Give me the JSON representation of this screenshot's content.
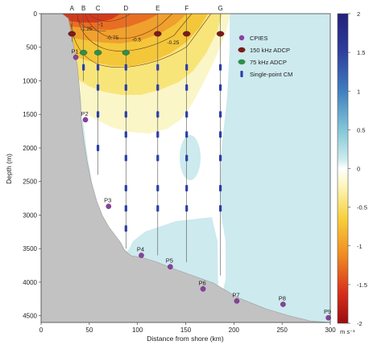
{
  "chart_data": {
    "type": "heatmap",
    "xlabel": "Distance from shore (km)",
    "ylabel": "Depth (m)",
    "xlim": [
      0,
      300
    ],
    "ylim": [
      4600,
      0
    ],
    "x_ticks": [
      0,
      50,
      100,
      150,
      200,
      250,
      300
    ],
    "y_ticks": [
      0,
      500,
      1000,
      1500,
      2000,
      2500,
      3000,
      3500,
      4000,
      4500
    ],
    "colorbar": {
      "label": "m s⁻¹",
      "range": [
        -2,
        2
      ],
      "ticks": [
        2,
        1.5,
        1,
        0.5,
        0,
        -0.5,
        -1,
        -1.5,
        -2
      ]
    },
    "contour_labels": [
      {
        "text": "-1.25",
        "x": 47,
        "y": 230
      },
      {
        "text": "-1",
        "x": 62,
        "y": 160
      },
      {
        "text": "-0.75",
        "x": 74,
        "y": 360
      },
      {
        "text": "-0.5",
        "x": 99,
        "y": 390
      },
      {
        "text": "-0.25",
        "x": 137,
        "y": 430
      }
    ],
    "moorings": [
      {
        "name": "A",
        "x": 32,
        "bottom": 420
      },
      {
        "name": "B",
        "x": 44,
        "bottom": 1000
      },
      {
        "name": "C",
        "x": 59,
        "bottom": 2400
      },
      {
        "name": "D",
        "x": 88,
        "bottom": 3500
      },
      {
        "name": "E",
        "x": 121,
        "bottom": 3600
      },
      {
        "name": "F",
        "x": 151,
        "bottom": 3700
      },
      {
        "name": "G",
        "x": 186,
        "bottom": 3900
      }
    ],
    "adcp_150": [
      [
        32,
        300
      ],
      [
        121,
        300
      ],
      [
        151,
        300
      ],
      [
        186,
        300
      ]
    ],
    "adcp_75": [
      [
        44,
        580
      ],
      [
        59,
        580
      ],
      [
        88,
        580
      ]
    ],
    "current_meters": [
      [
        44,
        800
      ],
      [
        59,
        800
      ],
      [
        59,
        1100
      ],
      [
        59,
        1500
      ],
      [
        59,
        2000
      ],
      [
        88,
        800
      ],
      [
        88,
        1100
      ],
      [
        88,
        1500
      ],
      [
        88,
        1800
      ],
      [
        88,
        2150
      ],
      [
        88,
        2600
      ],
      [
        88,
        2900
      ],
      [
        88,
        3200
      ],
      [
        121,
        800
      ],
      [
        121,
        1100
      ],
      [
        121,
        1500
      ],
      [
        121,
        1800
      ],
      [
        121,
        2150
      ],
      [
        121,
        2600
      ],
      [
        121,
        2900
      ],
      [
        151,
        800
      ],
      [
        151,
        1100
      ],
      [
        151,
        1500
      ],
      [
        151,
        1800
      ],
      [
        151,
        2150
      ],
      [
        151,
        2600
      ],
      [
        151,
        2900
      ],
      [
        186,
        800
      ],
      [
        186,
        1100
      ],
      [
        186,
        1500
      ],
      [
        186,
        1800
      ],
      [
        186,
        2150
      ],
      [
        186,
        2600
      ],
      [
        186,
        2900
      ]
    ],
    "cpies": [
      {
        "name": "P1",
        "x": 36,
        "y": 650
      },
      {
        "name": "P2",
        "x": 46,
        "y": 1580
      },
      {
        "name": "P3",
        "x": 70,
        "y": 2870
      },
      {
        "name": "P4",
        "x": 104,
        "y": 3600
      },
      {
        "name": "P5",
        "x": 134,
        "y": 3770
      },
      {
        "name": "P6",
        "x": 168,
        "y": 4100
      },
      {
        "name": "P7",
        "x": 203,
        "y": 4280
      },
      {
        "name": "P8",
        "x": 251,
        "y": 4330
      },
      {
        "name": "P9",
        "x": 298,
        "y": 4530
      }
    ],
    "legend": [
      {
        "label": "CPIES",
        "marker": "circle",
        "color": "#8b3fa0"
      },
      {
        "label": "150 kHz ADCP",
        "marker": "ellipse",
        "color": "#7a1b1b"
      },
      {
        "label": "75 kHz ADCP",
        "marker": "ellipse",
        "color": "#2f8f4a"
      },
      {
        "label": "Single-point CM",
        "marker": "bar",
        "color": "#2b3fa8"
      }
    ],
    "legend_position": "top-right",
    "grid": false
  }
}
